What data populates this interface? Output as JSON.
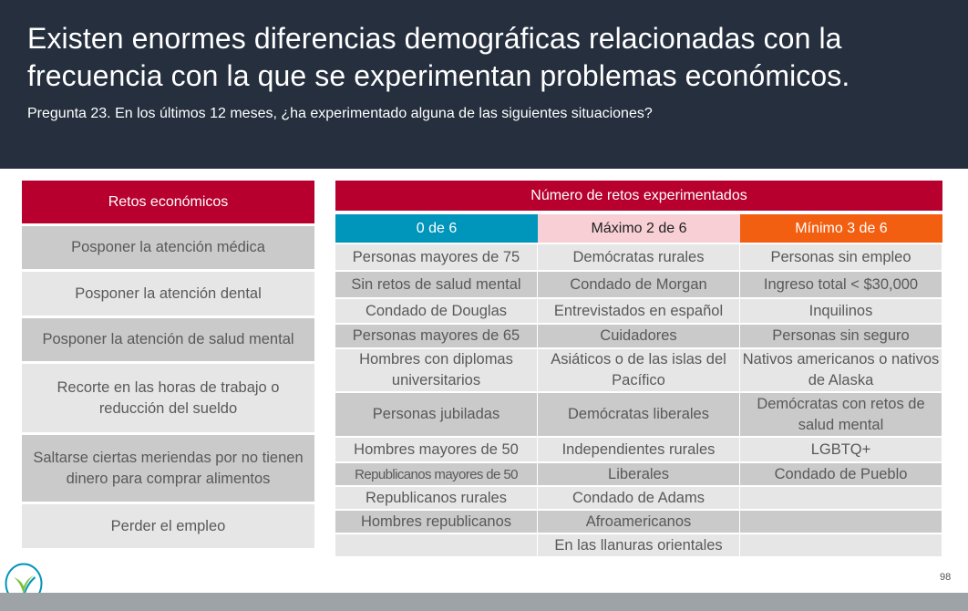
{
  "header": {
    "title": "Existen enormes diferencias demográficas relacionadas con la frecuencia con la que se experimentan problemas económicos.",
    "subtitle": "Pregunta 23. En los últimos 12 meses, ¿ha experimentado alguna de las siguientes situaciones?"
  },
  "left": {
    "heading": "Retos económicos",
    "items": [
      "Posponer la atención médica",
      "Posponer la atención dental",
      "Posponer la atención de salud mental",
      "Recorte en las horas de trabajo o reducción del sueldo",
      "Saltarse ciertas meriendas por no tienen dinero para comprar alimentos",
      "Perder el empleo"
    ]
  },
  "right": {
    "heading": "Número de retos experimentados",
    "categories": [
      "0 de 6",
      "Máximo 2 de 6",
      "Mínimo 3 de 6"
    ],
    "rows": [
      [
        "Personas mayores de 75",
        "Demócratas rurales",
        "Personas sin empleo"
      ],
      [
        "Sin retos de salud mental",
        "Condado de Morgan",
        "Ingreso total < $30,000"
      ],
      [
        "Condado de Douglas",
        "Entrevistados en español",
        "Inquilinos"
      ],
      [
        "Personas mayores de 65",
        "Cuidadores",
        "Personas sin seguro"
      ],
      [
        "Hombres con diplomas universitarios",
        "Asiáticos o de las islas del Pacífico",
        "Nativos americanos o nativos de Alaska"
      ],
      [
        "Personas jubiladas",
        "Demócratas liberales",
        "Demócratas con retos de salud mental"
      ],
      [
        "Hombres mayores de 50",
        "Independientes rurales",
        "LGBTQ+"
      ],
      [
        "Republicanos mayores de 50",
        "Liberales",
        "Condado de Pueblo"
      ],
      [
        "Republicanos rurales",
        "Condado de Adams",
        ""
      ],
      [
        "Hombres republicanos",
        "Afroamericanos",
        ""
      ],
      [
        "",
        "En las llanuras orientales",
        ""
      ]
    ]
  },
  "footer": {
    "page_number": "98"
  },
  "colors": {
    "header_bg": "#252f3e",
    "accent_red": "#b7002e",
    "cat_zero": "#0095ba",
    "cat_max2": "#f7cfd4",
    "cat_min3": "#f35f11"
  }
}
